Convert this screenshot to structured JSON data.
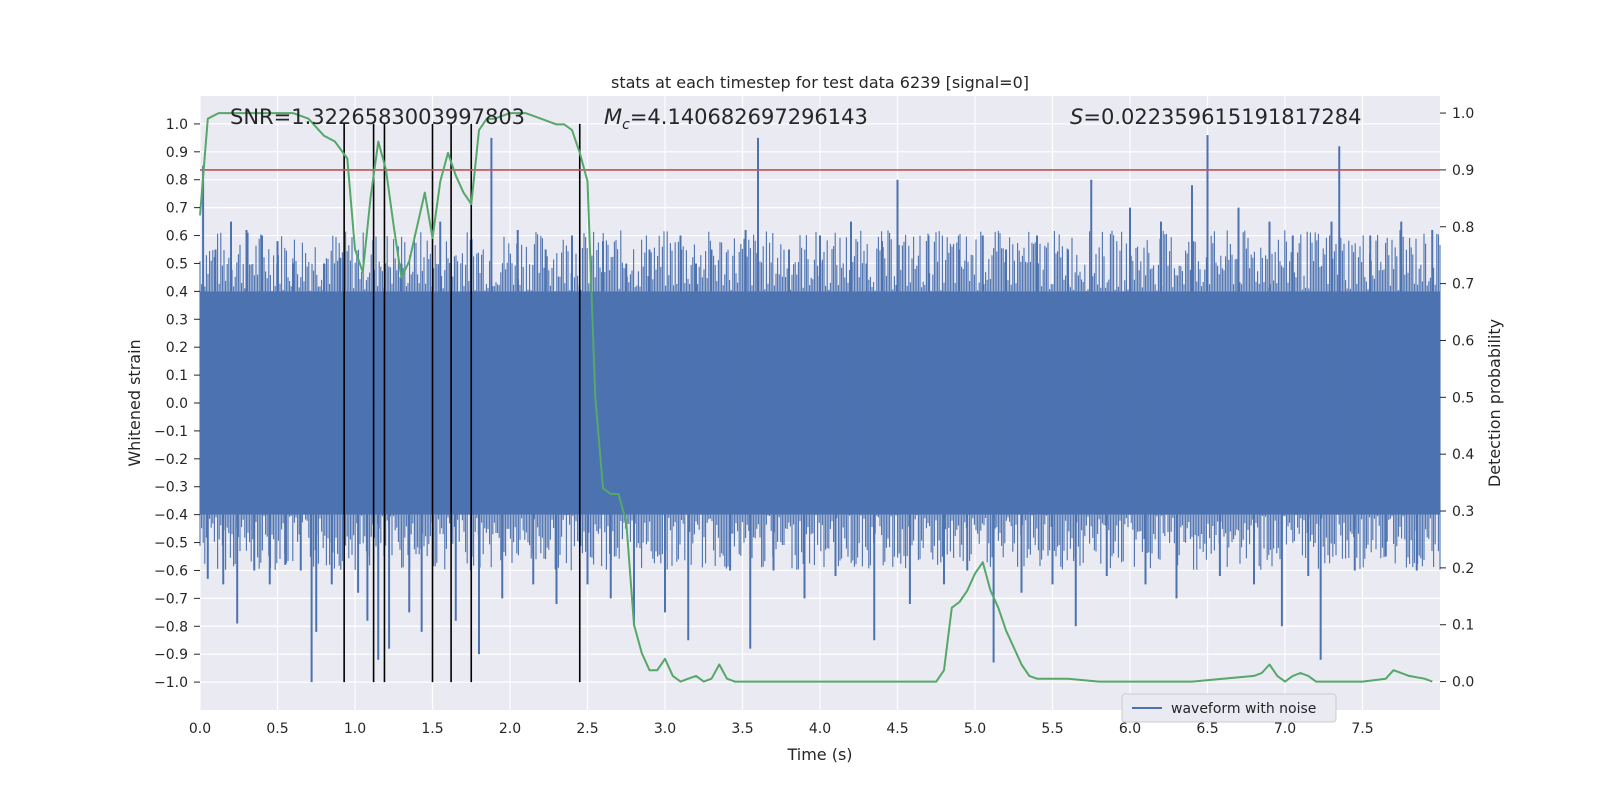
{
  "chart_data": {
    "type": "line",
    "title": "stats at each timestep for test data 6239 [signal=0]",
    "xlabel": "Time (s)",
    "ylabel": "Whitened strain",
    "y2label": "Detection probability",
    "xlim": [
      0.0,
      8.0
    ],
    "ylim": [
      -1.1,
      1.1
    ],
    "y2lim": [
      -0.05,
      1.03
    ],
    "grid": true,
    "x_ticks": [
      "0.0",
      "0.5",
      "1.0",
      "1.5",
      "2.0",
      "2.5",
      "3.0",
      "3.5",
      "4.0",
      "4.5",
      "5.0",
      "5.5",
      "6.0",
      "6.5",
      "7.0",
      "7.5"
    ],
    "y_ticks": [
      "1.0",
      "0.9",
      "0.8",
      "0.7",
      "0.6",
      "0.5",
      "0.4",
      "0.3",
      "0.2",
      "0.1",
      "0.0",
      "−0.1",
      "−0.2",
      "−0.3",
      "−0.4",
      "−0.5",
      "−0.6",
      "−0.7",
      "−0.8",
      "−0.9",
      "−1.0"
    ],
    "y2_ticks": [
      "1.0",
      "0.9",
      "0.8",
      "0.7",
      "0.6",
      "0.5",
      "0.4",
      "0.3",
      "0.2",
      "0.1",
      "0.0"
    ],
    "annotations": {
      "snr": "SNR=1.3226583003997803",
      "mc_symbol": "M",
      "mc_sub": "c",
      "mc_value": "=4.140682697296143",
      "s_symbol": "S",
      "s_value": "=0.022359615191817284"
    },
    "legend": {
      "label": "waveform with noise",
      "loc": "lower-right"
    },
    "threshold": {
      "prob": 0.9,
      "color": "#c44e52"
    },
    "vertical_lines": [
      0.93,
      1.12,
      1.19,
      1.5,
      1.62,
      1.75,
      2.45
    ],
    "series": [
      {
        "name": "waveform with noise",
        "color": "#4c72b0",
        "envelope": {
          "low": -0.4,
          "high": 0.4
        },
        "spikes": [
          {
            "x": 0.02,
            "y": 0.85
          },
          {
            "x": 0.05,
            "y": -0.63
          },
          {
            "x": 0.1,
            "y": 0.55
          },
          {
            "x": 0.15,
            "y": -0.65
          },
          {
            "x": 0.2,
            "y": 0.65
          },
          {
            "x": 0.24,
            "y": -0.79
          },
          {
            "x": 0.3,
            "y": 0.62
          },
          {
            "x": 0.35,
            "y": -0.6
          },
          {
            "x": 0.4,
            "y": 0.6
          },
          {
            "x": 0.45,
            "y": -0.65
          },
          {
            "x": 0.5,
            "y": 0.58
          },
          {
            "x": 0.55,
            "y": -0.58
          },
          {
            "x": 0.6,
            "y": 0.5
          },
          {
            "x": 0.65,
            "y": -0.6
          },
          {
            "x": 0.72,
            "y": -1.0
          },
          {
            "x": 0.75,
            "y": -0.82
          },
          {
            "x": 0.8,
            "y": 0.5
          },
          {
            "x": 0.85,
            "y": -0.65
          },
          {
            "x": 0.9,
            "y": 0.52
          },
          {
            "x": 1.02,
            "y": -0.68
          },
          {
            "x": 1.08,
            "y": -0.78
          },
          {
            "x": 1.15,
            "y": -0.92
          },
          {
            "x": 1.22,
            "y": -0.88
          },
          {
            "x": 1.3,
            "y": 0.5
          },
          {
            "x": 1.35,
            "y": -0.75
          },
          {
            "x": 1.43,
            "y": -0.82
          },
          {
            "x": 1.55,
            "y": 0.65
          },
          {
            "x": 1.65,
            "y": -0.78
          },
          {
            "x": 1.8,
            "y": -0.9
          },
          {
            "x": 1.88,
            "y": 0.95
          },
          {
            "x": 1.95,
            "y": -0.7
          },
          {
            "x": 2.05,
            "y": 0.62
          },
          {
            "x": 2.15,
            "y": -0.65
          },
          {
            "x": 2.23,
            "y": 0.55
          },
          {
            "x": 2.3,
            "y": -0.72
          },
          {
            "x": 2.4,
            "y": 0.6
          },
          {
            "x": 2.5,
            "y": -0.65
          },
          {
            "x": 2.6,
            "y": 0.58
          },
          {
            "x": 2.65,
            "y": -0.7
          },
          {
            "x": 2.75,
            "y": 0.5
          },
          {
            "x": 2.8,
            "y": -0.8
          },
          {
            "x": 2.9,
            "y": 0.55
          },
          {
            "x": 3.0,
            "y": -0.75
          },
          {
            "x": 3.1,
            "y": 0.6
          },
          {
            "x": 3.15,
            "y": -0.85
          },
          {
            "x": 3.2,
            "y": 0.5
          },
          {
            "x": 3.3,
            "y": 0.55
          },
          {
            "x": 3.42,
            "y": -0.6
          },
          {
            "x": 3.52,
            "y": 0.62
          },
          {
            "x": 3.55,
            "y": -0.88
          },
          {
            "x": 3.6,
            "y": 0.95
          },
          {
            "x": 3.7,
            "y": -0.6
          },
          {
            "x": 3.8,
            "y": 0.55
          },
          {
            "x": 3.9,
            "y": -0.7
          },
          {
            "x": 4.0,
            "y": 0.6
          },
          {
            "x": 4.1,
            "y": -0.62
          },
          {
            "x": 4.2,
            "y": 0.65
          },
          {
            "x": 4.3,
            "y": 0.5
          },
          {
            "x": 4.35,
            "y": -0.85
          },
          {
            "x": 4.4,
            "y": 0.58
          },
          {
            "x": 4.5,
            "y": 0.8
          },
          {
            "x": 4.58,
            "y": -0.72
          },
          {
            "x": 4.7,
            "y": 0.6
          },
          {
            "x": 4.8,
            "y": -0.65
          },
          {
            "x": 4.9,
            "y": 0.55
          },
          {
            "x": 4.95,
            "y": -0.6
          },
          {
            "x": 5.05,
            "y": 0.6
          },
          {
            "x": 5.12,
            "y": -0.93
          },
          {
            "x": 5.2,
            "y": 0.55
          },
          {
            "x": 5.3,
            "y": -0.68
          },
          {
            "x": 5.4,
            "y": 0.6
          },
          {
            "x": 5.5,
            "y": -0.65
          },
          {
            "x": 5.6,
            "y": 0.55
          },
          {
            "x": 5.65,
            "y": -0.8
          },
          {
            "x": 5.75,
            "y": 0.8
          },
          {
            "x": 5.85,
            "y": -0.62
          },
          {
            "x": 6.0,
            "y": 0.7
          },
          {
            "x": 6.1,
            "y": -0.65
          },
          {
            "x": 6.2,
            "y": 0.65
          },
          {
            "x": 6.3,
            "y": -0.7
          },
          {
            "x": 6.4,
            "y": 0.78
          },
          {
            "x": 6.5,
            "y": 0.96
          },
          {
            "x": 6.58,
            "y": -0.62
          },
          {
            "x": 6.7,
            "y": 0.7
          },
          {
            "x": 6.8,
            "y": -0.65
          },
          {
            "x": 6.9,
            "y": 0.65
          },
          {
            "x": 6.98,
            "y": -0.8
          },
          {
            "x": 7.05,
            "y": 0.6
          },
          {
            "x": 7.15,
            "y": -0.62
          },
          {
            "x": 7.23,
            "y": -0.92
          },
          {
            "x": 7.3,
            "y": 0.65
          },
          {
            "x": 7.35,
            "y": 0.92
          },
          {
            "x": 7.45,
            "y": -0.6
          },
          {
            "x": 7.55,
            "y": 0.6
          },
          {
            "x": 7.65,
            "y": -0.55
          },
          {
            "x": 7.75,
            "y": 0.65
          },
          {
            "x": 7.85,
            "y": -0.6
          },
          {
            "x": 7.95,
            "y": 0.62
          }
        ]
      },
      {
        "name": "detection probability",
        "axis": "right",
        "color": "#55a868",
        "x": [
          0.0,
          0.05,
          0.12,
          0.2,
          0.3,
          0.4,
          0.5,
          0.6,
          0.7,
          0.8,
          0.87,
          0.95,
          1.0,
          1.05,
          1.1,
          1.15,
          1.2,
          1.25,
          1.3,
          1.35,
          1.4,
          1.45,
          1.5,
          1.55,
          1.6,
          1.65,
          1.7,
          1.75,
          1.8,
          1.85,
          1.9,
          2.0,
          2.1,
          2.2,
          2.3,
          2.35,
          2.4,
          2.45,
          2.5,
          2.55,
          2.6,
          2.65,
          2.7,
          2.75,
          2.8,
          2.85,
          2.9,
          2.95,
          3.0,
          3.05,
          3.1,
          3.15,
          3.2,
          3.25,
          3.3,
          3.35,
          3.4,
          3.45,
          3.5,
          3.55,
          3.6,
          3.8,
          4.0,
          4.3,
          4.5,
          4.75,
          4.8,
          4.85,
          4.9,
          4.95,
          5.0,
          5.05,
          5.1,
          5.15,
          5.2,
          5.25,
          5.3,
          5.35,
          5.4,
          5.45,
          5.5,
          5.6,
          5.8,
          6.0,
          6.2,
          6.4,
          6.6,
          6.8,
          6.85,
          6.9,
          6.95,
          7.0,
          7.05,
          7.1,
          7.15,
          7.2,
          7.3,
          7.5,
          7.65,
          7.7,
          7.8,
          7.9,
          7.95
        ],
        "y": [
          0.82,
          0.99,
          1.0,
          1.0,
          1.0,
          1.0,
          1.0,
          1.0,
          0.99,
          0.96,
          0.95,
          0.92,
          0.76,
          0.72,
          0.85,
          0.95,
          0.9,
          0.8,
          0.71,
          0.74,
          0.8,
          0.86,
          0.78,
          0.88,
          0.93,
          0.89,
          0.86,
          0.84,
          0.97,
          0.99,
          0.99,
          1.0,
          1.0,
          0.99,
          0.98,
          0.98,
          0.97,
          0.93,
          0.88,
          0.5,
          0.34,
          0.33,
          0.33,
          0.28,
          0.1,
          0.05,
          0.02,
          0.02,
          0.04,
          0.01,
          0.0,
          0.005,
          0.01,
          0.0,
          0.005,
          0.03,
          0.005,
          0.0,
          0.0,
          0.0,
          0.0,
          0.0,
          0.0,
          0.0,
          0.0,
          0.0,
          0.02,
          0.13,
          0.14,
          0.16,
          0.19,
          0.21,
          0.16,
          0.13,
          0.09,
          0.06,
          0.03,
          0.01,
          0.005,
          0.005,
          0.005,
          0.005,
          0.0,
          0.0,
          0.0,
          0.0,
          0.005,
          0.01,
          0.015,
          0.03,
          0.01,
          0.0,
          0.01,
          0.015,
          0.01,
          0.0,
          0.0,
          0.0,
          0.005,
          0.02,
          0.01,
          0.005,
          0.0
        ]
      }
    ]
  }
}
